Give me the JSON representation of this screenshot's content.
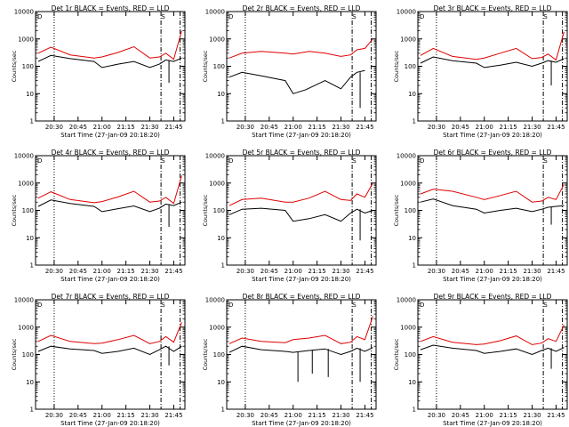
{
  "colors": {
    "events": "#000000",
    "lld": "#e00000",
    "axes": "#000000",
    "background": "#ffffff"
  },
  "shared": {
    "ylabel": "Counts/sec",
    "xlabel": "Start Time (27-Jan-09 20:18:20)",
    "x_tick_labels": [
      "20:30",
      "20:45",
      "21:00",
      "21:15",
      "21:30",
      "21:45"
    ],
    "y_tick_labels": [
      "1",
      "10",
      "100",
      "1000",
      "10000"
    ],
    "y_scale": "log",
    "ylim": [
      1,
      10000
    ],
    "xlim": [
      "20:18:20",
      "21:52:00"
    ],
    "legend_marker": "D",
    "legend_marker_2": "S"
  },
  "chart_data": [
    {
      "type": "line",
      "title": "Det 1r BLACK = Events, RED = LLD",
      "vlines": [
        {
          "t": "20:30",
          "style": "dotted"
        },
        {
          "t": "21:37",
          "style": "dashdot"
        },
        {
          "t": "21:49",
          "style": "dashdot"
        }
      ],
      "series": [
        {
          "name": "BLACK = Events",
          "x": [
            "20:20",
            "20:28",
            "20:40",
            "20:55",
            "21:00",
            "21:10",
            "21:20",
            "21:30",
            "21:36",
            "21:40",
            "21:45",
            "21:50"
          ],
          "y": [
            150,
            250,
            190,
            150,
            90,
            120,
            150,
            90,
            120,
            170,
            150,
            200
          ],
          "gaps": [
            {
              "t": "21:42",
              "y": 25
            }
          ]
        },
        {
          "name": "RED = LLD",
          "x": [
            "20:20",
            "20:28",
            "20:40",
            "20:55",
            "21:00",
            "21:10",
            "21:20",
            "21:30",
            "21:36",
            "21:40",
            "21:45",
            "21:50"
          ],
          "y": [
            300,
            500,
            260,
            200,
            220,
            320,
            520,
            200,
            220,
            300,
            180,
            2000
          ]
        }
      ]
    },
    {
      "type": "line",
      "title": "Det 2r BLACK = Events, RED = LLD",
      "vlines": [
        {
          "t": "20:30",
          "style": "dotted"
        },
        {
          "t": "21:37",
          "style": "dashdot"
        },
        {
          "t": "21:49",
          "style": "dashdot"
        }
      ],
      "series": [
        {
          "name": "BLACK = Events",
          "x": [
            "20:20",
            "20:28",
            "20:40",
            "20:55",
            "21:00",
            "21:08",
            "21:20",
            "21:30",
            "21:36",
            "21:40",
            "21:45"
          ],
          "y": [
            40,
            60,
            45,
            30,
            10,
            14,
            30,
            15,
            40,
            60,
            70
          ],
          "gaps": [
            {
              "t": "21:42",
              "y": 3
            }
          ]
        },
        {
          "name": "RED = LLD",
          "x": [
            "20:20",
            "20:28",
            "20:40",
            "20:55",
            "21:00",
            "21:10",
            "21:20",
            "21:30",
            "21:36",
            "21:40",
            "21:45",
            "21:50"
          ],
          "y": [
            200,
            300,
            350,
            300,
            280,
            350,
            300,
            230,
            260,
            400,
            450,
            1000
          ]
        }
      ]
    },
    {
      "type": "line",
      "title": "Det 3r BLACK = Events, RED = LLD",
      "vlines": [
        {
          "t": "20:30",
          "style": "dotted"
        },
        {
          "t": "21:37",
          "style": "dashdot"
        },
        {
          "t": "21:49",
          "style": "dashdot"
        }
      ],
      "series": [
        {
          "name": "BLACK = Events",
          "x": [
            "20:20",
            "20:28",
            "20:40",
            "20:55",
            "21:00",
            "21:10",
            "21:20",
            "21:30",
            "21:36",
            "21:40",
            "21:45",
            "21:50"
          ],
          "y": [
            130,
            220,
            160,
            130,
            90,
            110,
            140,
            100,
            130,
            160,
            140,
            190
          ],
          "gaps": [
            {
              "t": "21:42",
              "y": 20
            }
          ]
        },
        {
          "name": "RED = LLD",
          "x": [
            "20:20",
            "20:28",
            "20:40",
            "20:55",
            "21:00",
            "21:10",
            "21:20",
            "21:30",
            "21:36",
            "21:40",
            "21:45",
            "21:50"
          ],
          "y": [
            250,
            450,
            230,
            180,
            200,
            300,
            450,
            190,
            210,
            280,
            170,
            1800
          ]
        }
      ]
    },
    {
      "type": "line",
      "title": "Det 4r BLACK = Events, RED = LLD",
      "vlines": [
        {
          "t": "20:30",
          "style": "dotted"
        },
        {
          "t": "21:37",
          "style": "dashdot"
        },
        {
          "t": "21:49",
          "style": "dashdot"
        }
      ],
      "series": [
        {
          "name": "BLACK = Events",
          "x": [
            "20:20",
            "20:28",
            "20:40",
            "20:55",
            "21:00",
            "21:10",
            "21:20",
            "21:30",
            "21:36",
            "21:40",
            "21:45",
            "21:50"
          ],
          "y": [
            140,
            240,
            180,
            140,
            90,
            115,
            145,
            90,
            120,
            170,
            150,
            200
          ],
          "gaps": [
            {
              "t": "21:42",
              "y": 25
            }
          ]
        },
        {
          "name": "RED = LLD",
          "x": [
            "20:20",
            "20:28",
            "20:40",
            "20:55",
            "21:00",
            "21:10",
            "21:20",
            "21:30",
            "21:36",
            "21:40",
            "21:45",
            "21:50"
          ],
          "y": [
            280,
            480,
            250,
            190,
            210,
            310,
            500,
            200,
            220,
            300,
            180,
            1900
          ]
        }
      ]
    },
    {
      "type": "line",
      "title": "Det 5r BLACK = Events, RED = LLD",
      "vlines": [
        {
          "t": "20:30",
          "style": "dotted"
        },
        {
          "t": "21:37",
          "style": "dashdot"
        },
        {
          "t": "21:49",
          "style": "dashdot"
        }
      ],
      "series": [
        {
          "name": "BLACK = Events",
          "x": [
            "20:20",
            "20:28",
            "20:40",
            "20:55",
            "21:00",
            "21:10",
            "21:20",
            "21:30",
            "21:36",
            "21:40",
            "21:45",
            "21:50"
          ],
          "y": [
            70,
            110,
            120,
            100,
            40,
            50,
            70,
            40,
            80,
            110,
            80,
            100
          ],
          "gaps": [
            {
              "t": "21:42",
              "y": 8
            }
          ]
        },
        {
          "name": "RED = LLD",
          "x": [
            "20:20",
            "20:28",
            "20:40",
            "20:55",
            "21:00",
            "21:10",
            "21:20",
            "21:30",
            "21:36",
            "21:40",
            "21:45",
            "21:50"
          ],
          "y": [
            150,
            250,
            280,
            200,
            200,
            280,
            500,
            250,
            230,
            400,
            300,
            1000
          ]
        }
      ]
    },
    {
      "type": "line",
      "title": "Det 6r BLACK = Events, RED = LLD",
      "vlines": [
        {
          "t": "20:30",
          "style": "dotted"
        },
        {
          "t": "21:37",
          "style": "dashdot"
        },
        {
          "t": "21:49",
          "style": "dashdot"
        }
      ],
      "series": [
        {
          "name": "BLACK = Events",
          "x": [
            "20:20",
            "20:28",
            "20:40",
            "20:55",
            "21:00",
            "21:10",
            "21:20",
            "21:30",
            "21:36",
            "21:40",
            "21:45",
            "21:50"
          ],
          "y": [
            200,
            260,
            150,
            110,
            80,
            100,
            120,
            90,
            110,
            130,
            140,
            150
          ],
          "gaps": [
            {
              "t": "21:42",
              "y": 30
            }
          ]
        },
        {
          "name": "RED = LLD",
          "x": [
            "20:20",
            "20:28",
            "20:40",
            "20:55",
            "21:00",
            "21:10",
            "21:20",
            "21:30",
            "21:36",
            "21:40",
            "21:45",
            "21:50"
          ],
          "y": [
            400,
            600,
            500,
            300,
            250,
            350,
            500,
            200,
            220,
            300,
            250,
            900
          ]
        }
      ]
    },
    {
      "type": "line",
      "title": "Det 7r BLACK = Events, RED = LLD",
      "vlines": [
        {
          "t": "20:30",
          "style": "dotted"
        },
        {
          "t": "21:37",
          "style": "dashdot"
        },
        {
          "t": "21:49",
          "style": "dashdot"
        }
      ],
      "series": [
        {
          "name": "BLACK = Events",
          "x": [
            "20:20",
            "20:28",
            "20:40",
            "20:55",
            "21:00",
            "21:10",
            "21:20",
            "21:30",
            "21:36",
            "21:40",
            "21:45",
            "21:50"
          ],
          "y": [
            130,
            200,
            160,
            140,
            110,
            130,
            170,
            100,
            150,
            200,
            130,
            200
          ],
          "gaps": [
            {
              "t": "21:42",
              "y": 40
            }
          ]
        },
        {
          "name": "RED = LLD",
          "x": [
            "20:20",
            "20:28",
            "20:40",
            "20:55",
            "21:00",
            "21:10",
            "21:20",
            "21:30",
            "21:36",
            "21:40",
            "21:45",
            "21:50"
          ],
          "y": [
            300,
            500,
            300,
            250,
            260,
            350,
            500,
            250,
            300,
            450,
            280,
            1500
          ]
        }
      ]
    },
    {
      "type": "line",
      "title": "Det 8r BLACK = Events, RED = LLD",
      "vlines": [
        {
          "t": "20:30",
          "style": "dotted"
        },
        {
          "t": "21:37",
          "style": "dashdot"
        },
        {
          "t": "21:49",
          "style": "dashdot"
        }
      ],
      "series": [
        {
          "name": "BLACK = Events",
          "x": [
            "20:20",
            "20:28",
            "20:40",
            "20:55",
            "21:00",
            "21:10",
            "21:20",
            "21:30",
            "21:36",
            "21:40",
            "21:45",
            "21:50"
          ],
          "y": [
            120,
            200,
            150,
            130,
            120,
            140,
            160,
            100,
            130,
            170,
            130,
            180
          ],
          "gaps": [
            {
              "t": "21:03",
              "y": 10
            },
            {
              "t": "21:12",
              "y": 20
            },
            {
              "t": "21:22",
              "y": 15
            },
            {
              "t": "21:42",
              "y": 10
            }
          ]
        },
        {
          "name": "RED = LLD",
          "x": [
            "20:20",
            "20:28",
            "20:40",
            "20:55",
            "21:00",
            "21:10",
            "21:20",
            "21:30",
            "21:36",
            "21:40",
            "21:45",
            "21:50"
          ],
          "y": [
            250,
            400,
            300,
            270,
            350,
            400,
            500,
            250,
            280,
            450,
            350,
            2500
          ]
        }
      ]
    },
    {
      "type": "line",
      "title": "Det 9r BLACK = Events, RED = LLD",
      "vlines": [
        {
          "t": "20:30",
          "style": "dotted"
        },
        {
          "t": "21:37",
          "style": "dashdot"
        },
        {
          "t": "21:49",
          "style": "dashdot"
        }
      ],
      "series": [
        {
          "name": "BLACK = Events",
          "x": [
            "20:20",
            "20:28",
            "20:40",
            "20:55",
            "21:00",
            "21:10",
            "21:20",
            "21:30",
            "21:36",
            "21:40",
            "21:45",
            "21:50"
          ],
          "y": [
            150,
            220,
            170,
            140,
            110,
            130,
            160,
            100,
            140,
            170,
            130,
            180
          ],
          "gaps": [
            {
              "t": "21:42",
              "y": 30
            }
          ]
        },
        {
          "name": "RED = LLD",
          "x": [
            "20:20",
            "20:28",
            "20:40",
            "20:55",
            "21:00",
            "21:10",
            "21:20",
            "21:30",
            "21:36",
            "21:40",
            "21:45",
            "21:50"
          ],
          "y": [
            300,
            450,
            280,
            230,
            240,
            320,
            480,
            230,
            260,
            380,
            300,
            1200
          ]
        }
      ]
    }
  ]
}
